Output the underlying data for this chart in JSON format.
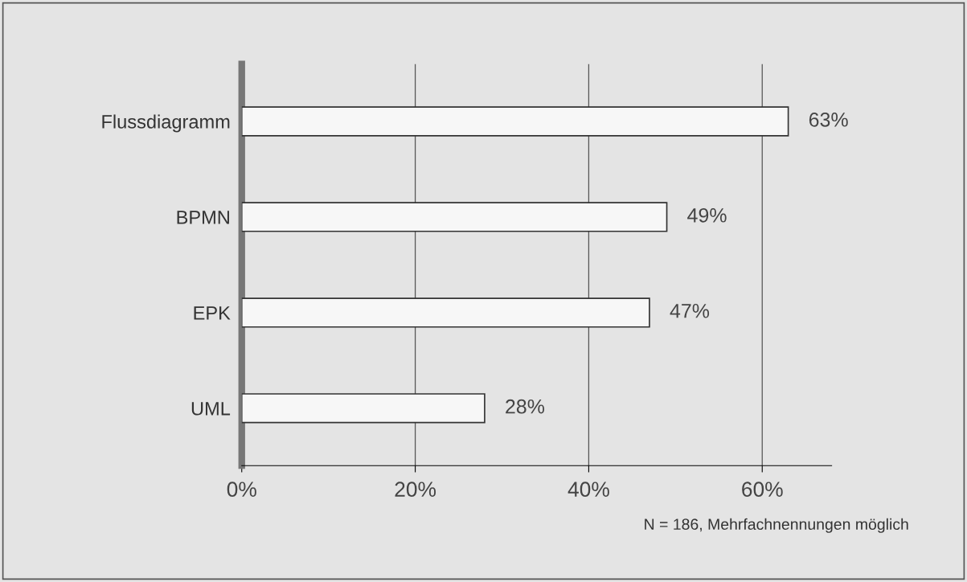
{
  "chart_data": {
    "type": "bar",
    "orientation": "horizontal",
    "categories": [
      "Flussdiagramm",
      "BPMN",
      "EPK",
      "UML"
    ],
    "values": [
      63,
      49,
      47,
      28
    ],
    "value_labels": [
      "63%",
      "49%",
      "47%",
      "28%"
    ],
    "color": "#f7f7f7",
    "xlim": [
      0,
      68
    ],
    "xticks": [
      {
        "value": 0,
        "label": "0%"
      },
      {
        "value": 20,
        "label": "20%"
      },
      {
        "value": 40,
        "label": "40%"
      },
      {
        "value": 60,
        "label": "60%"
      }
    ],
    "grid": "x",
    "annotations": [
      "N = 186, Mehrfachnennungen möglich"
    ]
  }
}
